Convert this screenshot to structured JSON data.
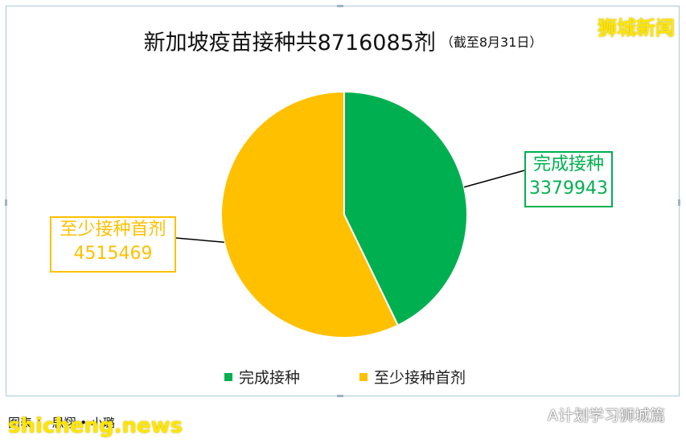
{
  "chart_data": {
    "type": "pie",
    "title": "新加坡疫苗接种共8716085剂",
    "subtitle": "（截至8月31日）",
    "slices": [
      {
        "name": "完成接种",
        "value": 3379943,
        "color": "#00b050"
      },
      {
        "name": "至少接种首剂",
        "value": 4515469,
        "color": "#ffc000"
      }
    ],
    "legend": {
      "placement": "bottom",
      "items": [
        "完成接种",
        "至少接种首剂"
      ]
    },
    "data_labels": [
      {
        "name": "完成接种",
        "value": "3379943"
      },
      {
        "name": "至少接种首剂",
        "value": "4515469"
      }
    ]
  },
  "watermark_top": "狮城新闻",
  "caption": "图表 ： 思翔 • 小璐",
  "watermark_bottom": "shicheng.news",
  "wechat_label": "A计划学习狮城篇"
}
